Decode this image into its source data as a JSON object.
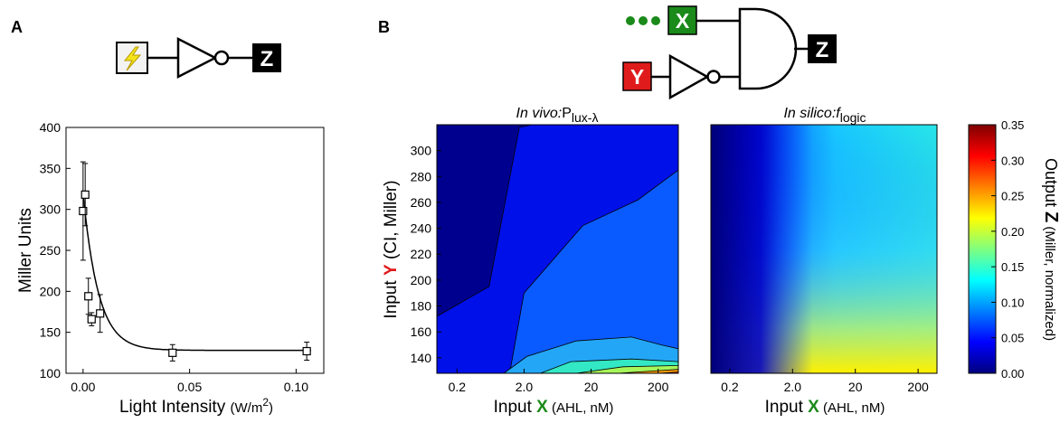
{
  "colors": {
    "signal_green": "#1a8a1a",
    "signal_red": "#e01b1b",
    "box_black": "#000000",
    "bolt_yellow": "#f4e31a",
    "contour_levels": [
      "#00008f",
      "#0010e8",
      "#0a5bff",
      "#24a6f6",
      "#33e8c4",
      "#a6f55a",
      "#ff9d00",
      "#ff2a00"
    ]
  },
  "panel_a": {
    "label": "A",
    "circuit": {
      "output_label": "Z",
      "input_icon": "lightning-icon",
      "gate": "NOT"
    }
  },
  "panel_b": {
    "label": "B",
    "circuit": {
      "input_x_label": "X",
      "input_y_label": "Y",
      "output_label": "Z",
      "gates": [
        "NOT",
        "AND"
      ]
    },
    "invivo_title_italic": "In vivo:",
    "invivo_title_main": "P",
    "invivo_title_sub": "lux-λ",
    "insilico_title_italic": "In silico:",
    "insilico_title_f": "f",
    "insilico_title_sub": "logic",
    "xlabel_prefix": "Input ",
    "xlabel_var": "X",
    "xlabel_units": " (AHL, nM)",
    "ylabel_prefix": "Input ",
    "ylabel_var": "Y",
    "ylabel_units": " (CI, Miller)",
    "cbar_label_prefix": "Output ",
    "cbar_label_var": "Z",
    "cbar_label_units": " (Miller, normalized)"
  },
  "chart_data": [
    {
      "type": "scatter",
      "xlabel_main": "Light Intensity ",
      "xlabel_unit": "(W/m",
      "xlabel_exp": "2",
      "xlabel_close": ")",
      "ylabel": "Miller Units",
      "xlim": [
        -0.008,
        0.113
      ],
      "ylim": [
        100,
        400
      ],
      "x_ticks": [
        0.0,
        0.05,
        0.1
      ],
      "x_tick_labels": [
        "0.00",
        "0.05",
        "0.10"
      ],
      "y_ticks": [
        100,
        150,
        200,
        250,
        300,
        350,
        400
      ],
      "y_tick_labels": [
        "100",
        "150",
        "200",
        "250",
        "300",
        "350",
        "400"
      ],
      "series": [
        {
          "marker": "open-square",
          "points": [
            {
              "x": 0.0,
              "y": 298,
              "err": 60
            },
            {
              "x": 0.001,
              "y": 318,
              "err": 38
            },
            {
              "x": 0.0025,
              "y": 194,
              "err": 22
            },
            {
              "x": 0.004,
              "y": 166,
              "err": 8
            },
            {
              "x": 0.008,
              "y": 173,
              "err": 23
            },
            {
              "x": 0.042,
              "y": 125,
              "err": 10
            },
            {
              "x": 0.105,
              "y": 127,
              "err": 11
            }
          ]
        }
      ],
      "fit_curve": {
        "baseline": 128,
        "amplitude": 192,
        "decay": 0.0072
      }
    },
    {
      "type": "heatmap",
      "variant": "contour",
      "x_scale": "log",
      "xlim": [
        0.1,
        400
      ],
      "ylim": [
        128,
        320
      ],
      "x_ticks": [
        0.2,
        2.0,
        20,
        200
      ],
      "x_tick_labels": [
        "0.2",
        "2.0",
        "20",
        "200"
      ],
      "y_ticks": [
        140,
        160,
        180,
        200,
        220,
        240,
        260,
        280,
        300
      ],
      "y_tick_labels": [
        "140",
        "160",
        "180",
        "200",
        "220",
        "240",
        "260",
        "280",
        "300"
      ],
      "level_boundaries": [
        [
          {
            "x": 0.1,
            "y": 172
          },
          {
            "x": 0.6,
            "y": 195
          },
          {
            "x": 1.7,
            "y": 318
          },
          {
            "x": 2.6,
            "y": 320
          }
        ],
        [
          {
            "x": 0.1,
            "y": 126
          },
          {
            "x": 1.2,
            "y": 126
          },
          {
            "x": 2.0,
            "y": 190
          },
          {
            "x": 15,
            "y": 242
          },
          {
            "x": 100,
            "y": 262
          },
          {
            "x": 400,
            "y": 285
          }
        ],
        [
          {
            "x": 1.0,
            "y": 128
          },
          {
            "x": 2.2,
            "y": 141
          },
          {
            "x": 12,
            "y": 153
          },
          {
            "x": 80,
            "y": 156
          },
          {
            "x": 220,
            "y": 150
          },
          {
            "x": 400,
            "y": 147
          }
        ],
        [
          {
            "x": 3.5,
            "y": 128
          },
          {
            "x": 10,
            "y": 137
          },
          {
            "x": 80,
            "y": 139
          },
          {
            "x": 400,
            "y": 137
          }
        ],
        [
          {
            "x": 12,
            "y": 128
          },
          {
            "x": 60,
            "y": 133
          },
          {
            "x": 400,
            "y": 134
          }
        ],
        [
          {
            "x": 50,
            "y": 128
          },
          {
            "x": 200,
            "y": 130
          },
          {
            "x": 400,
            "y": 131
          }
        ],
        [
          {
            "x": 200,
            "y": 128
          },
          {
            "x": 400,
            "y": 129
          }
        ]
      ]
    },
    {
      "type": "heatmap",
      "variant": "smooth",
      "x_scale": "log",
      "xlim": [
        0.1,
        400
      ],
      "ylim": [
        128,
        320
      ],
      "x_ticks": [
        0.2,
        2.0,
        20,
        200
      ],
      "x_tick_labels": [
        "0.2",
        "2.0",
        "20",
        "200"
      ],
      "colorbar": {
        "range": [
          0.0,
          0.35
        ],
        "ticks": [
          0.0,
          0.05,
          0.1,
          0.15,
          0.2,
          0.25,
          0.3,
          0.35
        ],
        "tick_labels": [
          "0.00",
          "0.05",
          "0.10",
          "0.15",
          "0.20",
          "0.25",
          "0.30",
          "0.35"
        ],
        "colormap": "jet"
      }
    }
  ]
}
